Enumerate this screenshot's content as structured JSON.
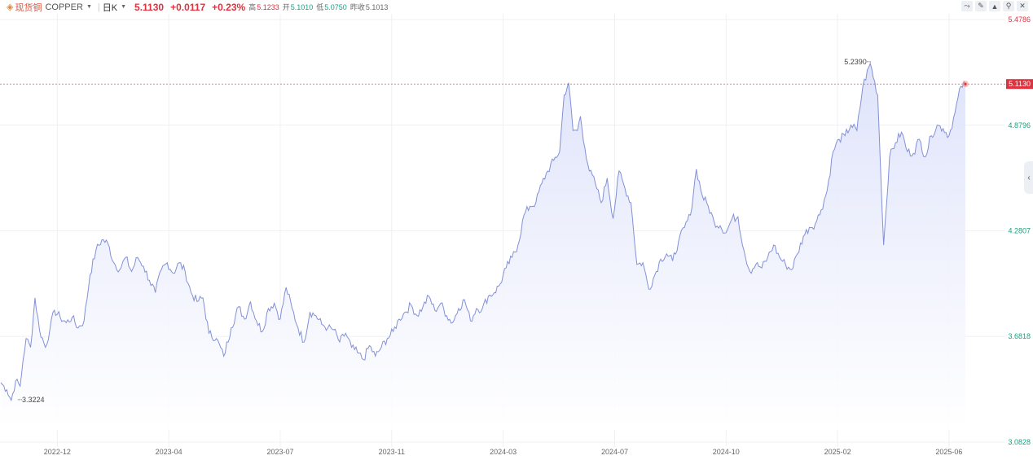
{
  "header": {
    "icon": "copper-icon",
    "name": "现货铜",
    "code": "COPPER",
    "period": "日K",
    "price": "5.1130",
    "change": "+0.0117",
    "change_pct": "+0.23%",
    "high_label": "高",
    "high": "5.1233",
    "open_label": "开",
    "open": "5.1010",
    "low_label": "低",
    "low": "5.0750",
    "prev_close_label": "昨收",
    "prev_close": "5.1013"
  },
  "toolbar_icons": [
    "line-chart-icon",
    "draw-icon",
    "mountain-chart-icon",
    "pin-icon",
    "close-icon"
  ],
  "side_tab_icon": "chevron-left-icon",
  "colors": {
    "line": "#8290d8",
    "fill": "#e4e8fb",
    "up": "#e0313f",
    "down": "#1aa181",
    "grid": "#eef0f4"
  },
  "chart_data": {
    "type": "area",
    "ylim": [
      3.0828,
      5.4786
    ],
    "y_ticks": [
      {
        "v": 5.4786,
        "label": "5.4786",
        "color": "#e0313f"
      },
      {
        "v": 4.8796,
        "label": "4.8796",
        "color": "#1aa181"
      },
      {
        "v": 4.2807,
        "label": "4.2807",
        "color": "#1aa181"
      },
      {
        "v": 3.6818,
        "label": "3.6818",
        "color": "#1aa181"
      },
      {
        "v": 3.0828,
        "label": "3.0828",
        "color": "#1aa181"
      }
    ],
    "x_labels": [
      "2022-12",
      "2023-04",
      "2023-07",
      "2023-11",
      "2024-03",
      "2024-07",
      "2024-10",
      "2025-02",
      "2025-06"
    ],
    "x_tick_index": [
      38,
      113,
      188,
      263,
      338,
      413,
      488,
      563,
      638
    ],
    "n_points": 650,
    "current_price": {
      "value": 5.113,
      "label": "5.1130"
    },
    "annotations": [
      {
        "label": "3.3224",
        "index": 8,
        "value": 3.3224
      },
      {
        "label": "5.2390",
        "index": 585,
        "value": 5.239
      }
    ],
    "anchors": [
      [
        0,
        3.42
      ],
      [
        4,
        3.38
      ],
      [
        7,
        3.32
      ],
      [
        10,
        3.43
      ],
      [
        13,
        3.4
      ],
      [
        15,
        3.55
      ],
      [
        17,
        3.67
      ],
      [
        20,
        3.62
      ],
      [
        23,
        3.9
      ],
      [
        26,
        3.72
      ],
      [
        30,
        3.62
      ],
      [
        33,
        3.72
      ],
      [
        36,
        3.83
      ],
      [
        40,
        3.79
      ],
      [
        44,
        3.76
      ],
      [
        48,
        3.79
      ],
      [
        52,
        3.73
      ],
      [
        56,
        3.77
      ],
      [
        60,
        4.03
      ],
      [
        64,
        4.17
      ],
      [
        68,
        4.23
      ],
      [
        72,
        4.21
      ],
      [
        76,
        4.1
      ],
      [
        80,
        4.06
      ],
      [
        84,
        4.13
      ],
      [
        88,
        4.05
      ],
      [
        92,
        4.13
      ],
      [
        96,
        4.08
      ],
      [
        100,
        4.0
      ],
      [
        104,
        3.93
      ],
      [
        108,
        4.06
      ],
      [
        112,
        4.1
      ],
      [
        116,
        4.04
      ],
      [
        120,
        4.1
      ],
      [
        124,
        4.05
      ],
      [
        128,
        3.93
      ],
      [
        132,
        3.88
      ],
      [
        136,
        3.9
      ],
      [
        140,
        3.7
      ],
      [
        145,
        3.67
      ],
      [
        150,
        3.57
      ],
      [
        155,
        3.73
      ],
      [
        160,
        3.85
      ],
      [
        164,
        3.78
      ],
      [
        168,
        3.88
      ],
      [
        172,
        3.77
      ],
      [
        176,
        3.71
      ],
      [
        180,
        3.84
      ],
      [
        184,
        3.87
      ],
      [
        188,
        3.78
      ],
      [
        192,
        3.96
      ],
      [
        196,
        3.84
      ],
      [
        200,
        3.73
      ],
      [
        204,
        3.65
      ],
      [
        208,
        3.82
      ],
      [
        212,
        3.8
      ],
      [
        216,
        3.75
      ],
      [
        220,
        3.73
      ],
      [
        224,
        3.72
      ],
      [
        228,
        3.65
      ],
      [
        232,
        3.7
      ],
      [
        236,
        3.62
      ],
      [
        240,
        3.59
      ],
      [
        244,
        3.55
      ],
      [
        248,
        3.63
      ],
      [
        252,
        3.57
      ],
      [
        256,
        3.62
      ],
      [
        260,
        3.67
      ],
      [
        264,
        3.71
      ],
      [
        268,
        3.78
      ],
      [
        272,
        3.82
      ],
      [
        276,
        3.86
      ],
      [
        280,
        3.8
      ],
      [
        284,
        3.85
      ],
      [
        288,
        3.91
      ],
      [
        292,
        3.83
      ],
      [
        296,
        3.87
      ],
      [
        300,
        3.8
      ],
      [
        304,
        3.76
      ],
      [
        308,
        3.84
      ],
      [
        312,
        3.89
      ],
      [
        316,
        3.77
      ],
      [
        320,
        3.84
      ],
      [
        324,
        3.84
      ],
      [
        328,
        3.91
      ],
      [
        332,
        3.93
      ],
      [
        336,
        3.98
      ],
      [
        340,
        4.07
      ],
      [
        344,
        4.13
      ],
      [
        348,
        4.2
      ],
      [
        352,
        4.37
      ],
      [
        356,
        4.42
      ],
      [
        360,
        4.44
      ],
      [
        364,
        4.55
      ],
      [
        368,
        4.62
      ],
      [
        372,
        4.68
      ],
      [
        376,
        4.73
      ],
      [
        379,
        5.05
      ],
      [
        382,
        5.12
      ],
      [
        385,
        4.85
      ],
      [
        388,
        4.85
      ],
      [
        390,
        4.93
      ],
      [
        393,
        4.75
      ],
      [
        396,
        4.62
      ],
      [
        400,
        4.55
      ],
      [
        404,
        4.44
      ],
      [
        408,
        4.58
      ],
      [
        412,
        4.35
      ],
      [
        416,
        4.62
      ],
      [
        420,
        4.52
      ],
      [
        424,
        4.44
      ],
      [
        428,
        4.09
      ],
      [
        432,
        4.1
      ],
      [
        436,
        3.95
      ],
      [
        440,
        4.03
      ],
      [
        444,
        4.12
      ],
      [
        448,
        4.15
      ],
      [
        452,
        4.11
      ],
      [
        456,
        4.22
      ],
      [
        460,
        4.3
      ],
      [
        464,
        4.37
      ],
      [
        468,
        4.63
      ],
      [
        472,
        4.48
      ],
      [
        476,
        4.42
      ],
      [
        480,
        4.33
      ],
      [
        484,
        4.31
      ],
      [
        488,
        4.27
      ],
      [
        492,
        4.35
      ],
      [
        496,
        4.36
      ],
      [
        500,
        4.17
      ],
      [
        504,
        4.05
      ],
      [
        508,
        4.09
      ],
      [
        512,
        4.07
      ],
      [
        516,
        4.13
      ],
      [
        520,
        4.2
      ],
      [
        524,
        4.13
      ],
      [
        528,
        4.09
      ],
      [
        532,
        4.06
      ],
      [
        536,
        4.15
      ],
      [
        540,
        4.25
      ],
      [
        544,
        4.3
      ],
      [
        548,
        4.32
      ],
      [
        552,
        4.4
      ],
      [
        556,
        4.51
      ],
      [
        560,
        4.73
      ],
      [
        564,
        4.8
      ],
      [
        568,
        4.82
      ],
      [
        572,
        4.88
      ],
      [
        576,
        4.85
      ],
      [
        580,
        5.1
      ],
      [
        585,
        5.23
      ],
      [
        590,
        5.05
      ],
      [
        594,
        4.2
      ],
      [
        598,
        4.7
      ],
      [
        602,
        4.78
      ],
      [
        606,
        4.84
      ],
      [
        610,
        4.73
      ],
      [
        614,
        4.72
      ],
      [
        618,
        4.8
      ],
      [
        622,
        4.7
      ],
      [
        626,
        4.82
      ],
      [
        630,
        4.88
      ],
      [
        634,
        4.86
      ],
      [
        638,
        4.82
      ],
      [
        642,
        4.95
      ],
      [
        646,
        5.1
      ],
      [
        649,
        5.113
      ]
    ]
  }
}
